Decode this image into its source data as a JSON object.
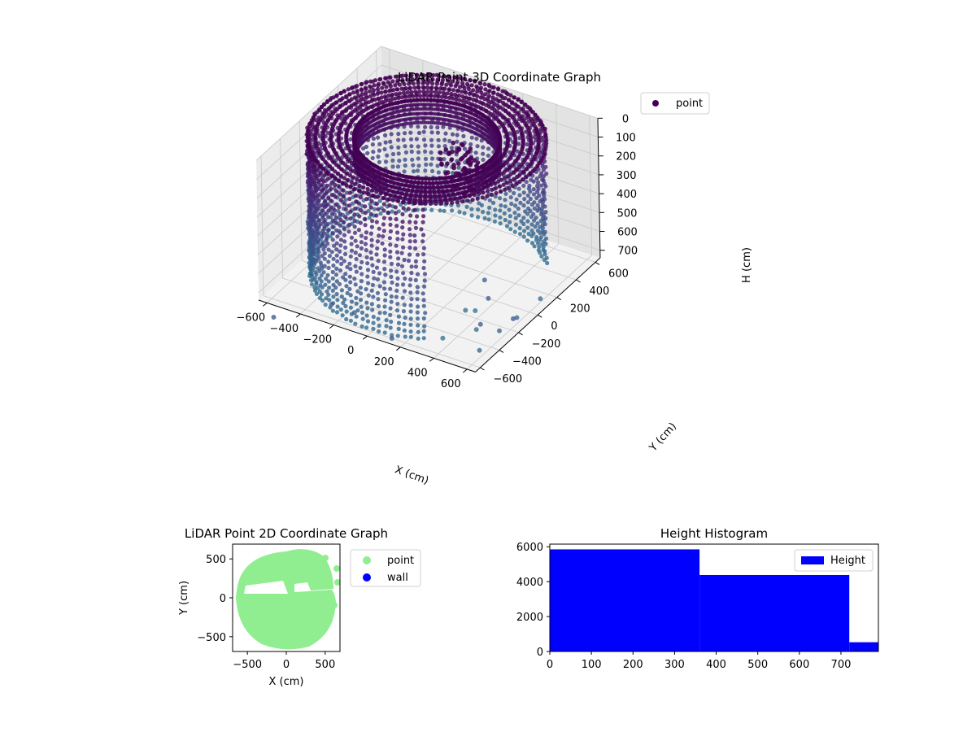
{
  "chart_data": [
    {
      "type": "scatter",
      "projection": "3d",
      "title": "LiDAR Point 3D Coordinate Graph",
      "xlabel": "X (cm)",
      "ylabel": "Y (cm)",
      "zlabel": "H (cm)",
      "xticks": [
        "−600",
        "−400",
        "−200",
        "0",
        "200",
        "400",
        "600"
      ],
      "yticks": [
        "−600",
        "−400",
        "−200",
        "0",
        "200",
        "400",
        "600"
      ],
      "zticks": [
        "0",
        "100",
        "200",
        "300",
        "400",
        "500",
        "600",
        "700"
      ],
      "xlim": [
        -650,
        650
      ],
      "ylim": [
        -650,
        650
      ],
      "zlim": [
        0,
        750
      ],
      "z_axis_inverted": true,
      "grid": true,
      "legend": {
        "labels": [
          "point"
        ],
        "position": "upper right"
      },
      "colormap": "viridis",
      "colors": {
        "point": "#440154"
      },
      "structure": {
        "outer_cylinder_radius_cm": 620,
        "inner_ring_radius_cm": 380,
        "height_range_cm": [
          0,
          740
        ],
        "open_side": "+X"
      }
    },
    {
      "type": "scatter",
      "title": "LiDAR Point 2D Coordinate Graph",
      "xlabel": "X (cm)",
      "ylabel": "Y (cm)",
      "xticks": [
        "−500",
        "0",
        "500"
      ],
      "yticks": [
        "500",
        "0",
        "−500"
      ],
      "xlim": [
        -690,
        690
      ],
      "ylim": [
        -690,
        690
      ],
      "legend": {
        "labels": [
          "point",
          "wall"
        ],
        "position": "outside right"
      },
      "series": [
        {
          "name": "point",
          "color": "#90ee90",
          "shape": "filled disc radius ~620 cm, open toward +X"
        },
        {
          "name": "wall",
          "color": "#0000ff"
        }
      ]
    },
    {
      "type": "bar",
      "title": "Height Histogram",
      "xticks": [
        "0",
        "100",
        "200",
        "300",
        "400",
        "500",
        "600",
        "700"
      ],
      "yticks": [
        "0",
        "2000",
        "4000",
        "6000"
      ],
      "xlim": [
        0,
        790
      ],
      "ylim": [
        0,
        6150
      ],
      "legend": {
        "labels": [
          "Height"
        ],
        "position": "upper right"
      },
      "color": "#0000ff",
      "series": [
        {
          "name": "Height",
          "bins": [
            [
              0,
              360
            ],
            [
              360,
              720
            ],
            [
              720,
              790
            ]
          ],
          "values": [
            5850,
            4380,
            530
          ]
        }
      ]
    }
  ]
}
